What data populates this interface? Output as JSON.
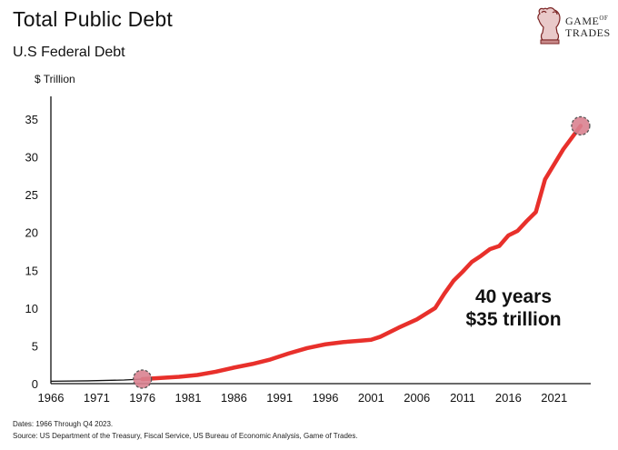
{
  "header": {
    "title": "Total Public Debt",
    "subtitle": "U.S Federal Debt",
    "unit_label": "$ Trillion"
  },
  "logo": {
    "text_line1": "GAME",
    "text_of": "OF",
    "text_line2": "TRADES",
    "icon": "chess-knight-bull-icon"
  },
  "footer": {
    "dates": "Dates: 1966 Through Q4 2023.",
    "source": "Source: US Department of the Treasury, Fiscal Service, US Bureau of Economic Analysis, Game of Trades."
  },
  "chart_data": {
    "type": "line",
    "xlim": [
      1966,
      2025
    ],
    "ylim": [
      0,
      38
    ],
    "xticks": [
      1966,
      1971,
      1976,
      1981,
      1986,
      1991,
      1996,
      2001,
      2006,
      2011,
      2016,
      2021
    ],
    "yticks": [
      0,
      5,
      10,
      15,
      20,
      25,
      30,
      35
    ],
    "series": [
      {
        "color": "#e8302b",
        "x": [
          1966,
          1970,
          1974,
          1976,
          1978,
          1980,
          1982,
          1984,
          1986,
          1988,
          1990,
          1992,
          1994,
          1996,
          1998,
          2000,
          2001,
          2002,
          2004,
          2006,
          2008,
          2009,
          2010,
          2011,
          2012,
          2013,
          2014,
          2015,
          2016,
          2017,
          2018,
          2019,
          2020,
          2021,
          2022,
          2023.9
        ],
        "y": [
          0.32,
          0.37,
          0.48,
          0.6,
          0.75,
          0.9,
          1.14,
          1.57,
          2.12,
          2.6,
          3.2,
          4.0,
          4.7,
          5.2,
          5.5,
          5.7,
          5.8,
          6.2,
          7.4,
          8.5,
          10.0,
          11.9,
          13.6,
          14.8,
          16.1,
          16.9,
          17.8,
          18.2,
          19.6,
          20.2,
          21.5,
          22.7,
          27.0,
          29.0,
          31.0,
          34.1
        ]
      }
    ],
    "highlight_points": [
      {
        "x": 1976,
        "y": 0.6
      },
      {
        "x": 2023.9,
        "y": 34.1
      }
    ],
    "highlight_color": "#d98290",
    "annotation": {
      "line1": "40 years",
      "line2": "$35 trillion"
    }
  }
}
